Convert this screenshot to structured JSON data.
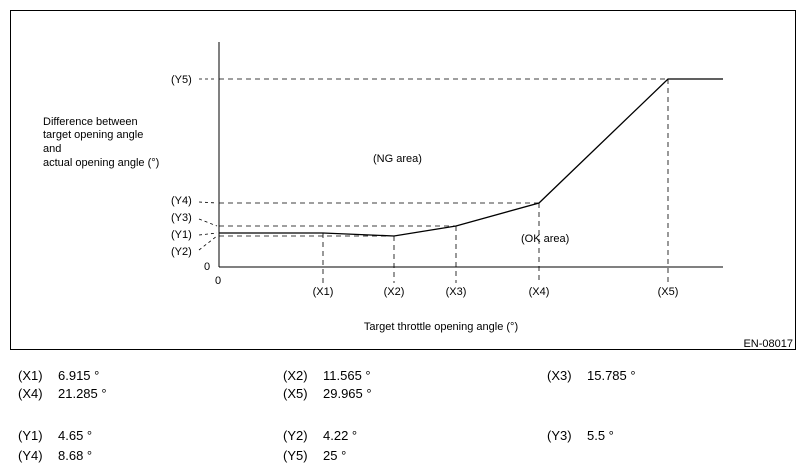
{
  "diagram": {
    "y_axis_label_lines": [
      "Difference between",
      "target opening angle",
      "and",
      "actual opening angle (°)"
    ],
    "x_axis_label": "Target throttle opening angle (°)",
    "ng_area_label": "(NG area)",
    "ok_area_label": "(OK area)",
    "origin_x": "0",
    "origin_y": "0",
    "code": "EN-08017",
    "x_ticks": [
      "(X1)",
      "(X2)",
      "(X3)",
      "(X4)",
      "(X5)"
    ],
    "y_ticks": [
      "(Y1)",
      "(Y2)",
      "(Y3)",
      "(Y4)",
      "(Y5)"
    ]
  },
  "values": {
    "x": [
      {
        "key": "(X1)",
        "value": "6.915 °"
      },
      {
        "key": "(X2)",
        "value": "11.565 °"
      },
      {
        "key": "(X3)",
        "value": "15.785 °"
      },
      {
        "key": "(X4)",
        "value": "21.285 °"
      },
      {
        "key": "(X5)",
        "value": "29.965 °"
      }
    ],
    "y": [
      {
        "key": "(Y1)",
        "value": "4.65 °"
      },
      {
        "key": "(Y2)",
        "value": "4.22 °"
      },
      {
        "key": "(Y3)",
        "value": "5.5 °"
      },
      {
        "key": "(Y4)",
        "value": "8.68 °"
      },
      {
        "key": "(Y5)",
        "value": "25 °"
      }
    ]
  }
}
